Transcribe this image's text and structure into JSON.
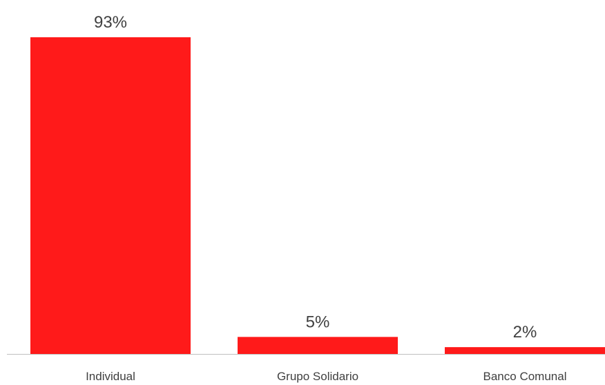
{
  "chart_data": {
    "type": "bar",
    "title": "",
    "xlabel": "",
    "ylabel": "",
    "categories": [
      "Individual",
      "Grupo Solidario",
      "Banco Comunal"
    ],
    "values": [
      93,
      5,
      2
    ],
    "value_labels": [
      "93%",
      "5%",
      "2%"
    ],
    "unit": "%",
    "ylim": [
      0,
      93
    ],
    "grid": false,
    "legend": "none",
    "bar_color": "#ff1a1a",
    "axis_color": "#bfbfbf",
    "text_color": "#404040"
  }
}
